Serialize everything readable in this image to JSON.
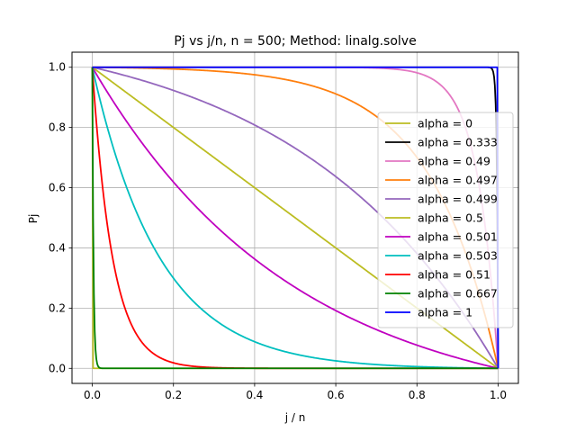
{
  "chart_data": {
    "type": "line",
    "title": "Pj vs j/n, n = 500; Method: linalg.solve",
    "xlabel": "j / n",
    "ylabel": "Pj",
    "xlim": [
      -0.05,
      1.05
    ],
    "ylim": [
      -0.05,
      1.05
    ],
    "xticks": [
      "0.0",
      "0.2",
      "0.4",
      "0.6",
      "0.8",
      "1.0"
    ],
    "yticks": [
      "0.0",
      "0.2",
      "0.4",
      "0.6",
      "0.8",
      "1.0"
    ],
    "grid": true,
    "legend_position": "right",
    "n": 500,
    "series": [
      {
        "name": "alpha = 0",
        "alpha": 0,
        "color": "#bcbd22"
      },
      {
        "name": "alpha = 0.333",
        "alpha": 0.333,
        "color": "#000000"
      },
      {
        "name": "alpha = 0.49",
        "alpha": 0.49,
        "color": "#e377c2"
      },
      {
        "name": "alpha = 0.497",
        "alpha": 0.497,
        "color": "#ff7f0e"
      },
      {
        "name": "alpha = 0.499",
        "alpha": 0.499,
        "color": "#9467bd"
      },
      {
        "name": "alpha = 0.5",
        "alpha": 0.5,
        "color": "#bcbd22"
      },
      {
        "name": "alpha = 0.501",
        "alpha": 0.501,
        "color": "#c000c0"
      },
      {
        "name": "alpha = 0.503",
        "alpha": 0.503,
        "color": "#00bfbf"
      },
      {
        "name": "alpha = 0.51",
        "alpha": 0.51,
        "color": "#ff0000"
      },
      {
        "name": "alpha = 0.667",
        "alpha": 0.667,
        "color": "#008000"
      },
      {
        "name": "alpha = 1",
        "alpha": 1,
        "color": "#0000ff"
      }
    ]
  }
}
